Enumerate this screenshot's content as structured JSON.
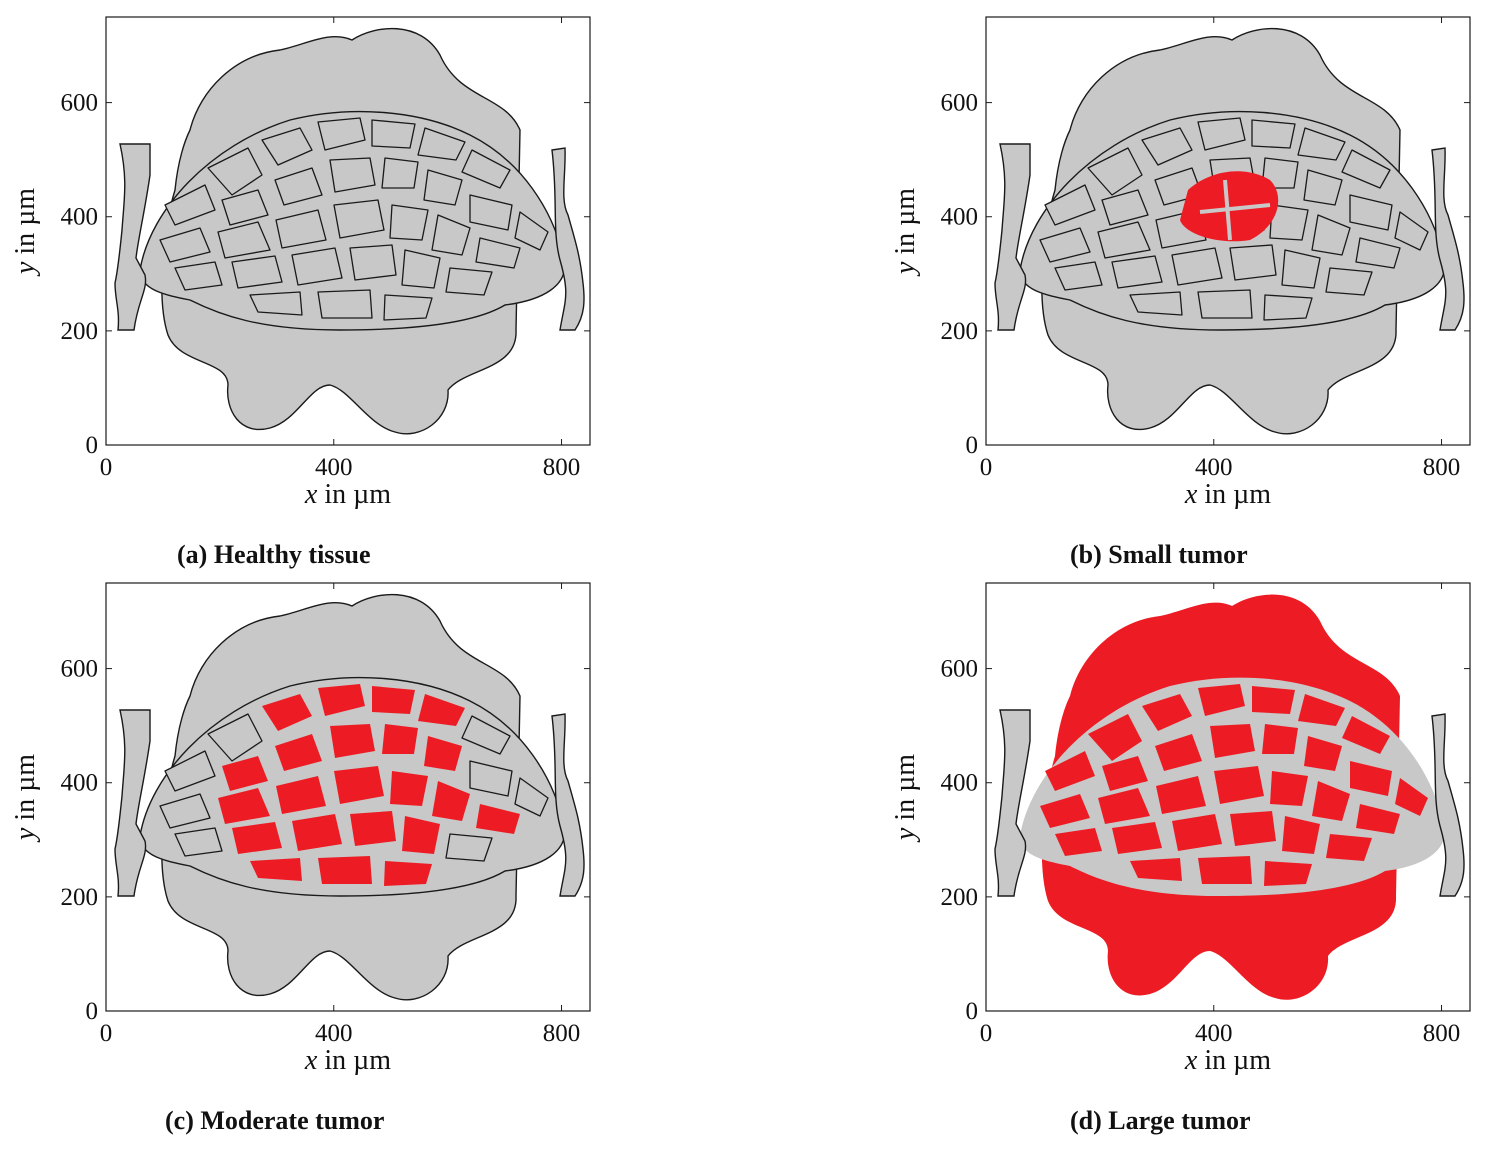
{
  "colors": {
    "tissue": "#c8c8c8",
    "tumor": "#ed1c24",
    "outline": "#1a1a1a",
    "vessel_light": "#c8c8c8"
  },
  "axes": {
    "x_label_var": "x",
    "x_label_rest": " in µm",
    "y_label_var": "y",
    "y_label_rest": " in µm",
    "x_ticks": [
      "0",
      "400",
      "800"
    ],
    "y_ticks": [
      "0",
      "200",
      "400",
      "600"
    ]
  },
  "panels": [
    {
      "id": "a",
      "caption": "(a) Healthy tissue",
      "tumor_level": "none"
    },
    {
      "id": "b",
      "caption": "(b) Small tumor",
      "tumor_level": "small"
    },
    {
      "id": "c",
      "caption": "(c) Moderate tumor",
      "tumor_level": "moderate"
    },
    {
      "id": "d",
      "caption": "(d) Large tumor",
      "tumor_level": "large"
    }
  ]
}
